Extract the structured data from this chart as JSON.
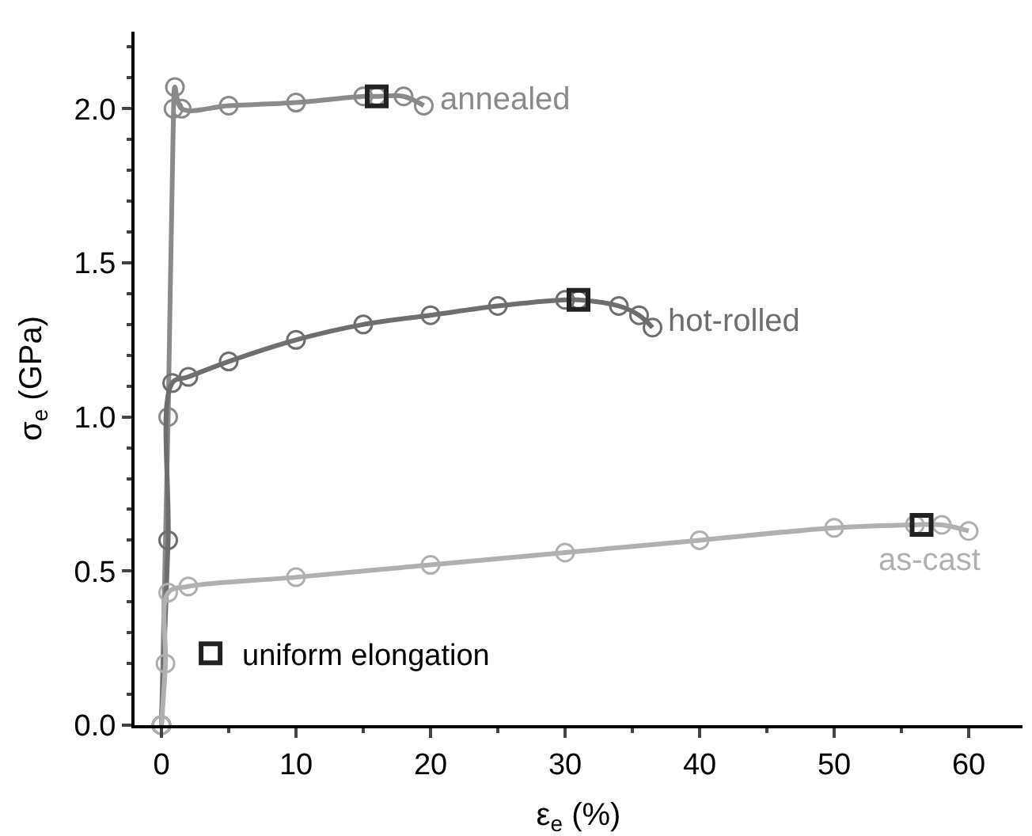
{
  "chart_data": {
    "type": "line",
    "xlabel": "ε$_{e}$ (%)",
    "ylabel": "σ$_{e}$ (GPa)",
    "xlim": [
      -2,
      64
    ],
    "ylim": [
      0,
      2.25
    ],
    "xticks": [
      0,
      10,
      20,
      30,
      40,
      50,
      60
    ],
    "yticks": [
      {
        "value": 0,
        "label": "0.0"
      },
      {
        "value": 0.5,
        "label": "0.5"
      },
      {
        "value": 1.0,
        "label": "1.0"
      },
      {
        "value": 1.5,
        "label": "1.5"
      },
      {
        "value": 2.0,
        "label": "2.0"
      }
    ],
    "marker": "circle",
    "line_style": "solid",
    "legend": "bottom left",
    "series": [
      {
        "name": "annealed",
        "color": "#8a8a8a",
        "x": [
          0,
          0.5,
          0.9,
          1.0,
          1.5,
          5,
          10,
          15,
          16,
          18,
          19.5
        ],
        "values": [
          0,
          1.0,
          2.0,
          2.07,
          2.0,
          2.01,
          2.02,
          2.04,
          2.04,
          2.04,
          2.01
        ]
      },
      {
        "name": "hot-rolled",
        "color": "#6e6e6e",
        "x": [
          0,
          0.5,
          0.8,
          2,
          5,
          10,
          15,
          20,
          25,
          30,
          31,
          34,
          35.5,
          36.5
        ],
        "values": [
          0,
          0.6,
          1.11,
          1.13,
          1.18,
          1.25,
          1.3,
          1.33,
          1.36,
          1.38,
          1.38,
          1.36,
          1.33,
          1.29
        ]
      },
      {
        "name": "as-cast",
        "color": "#b0b0b0",
        "x": [
          0,
          0.3,
          0.5,
          2,
          10,
          20,
          30,
          40,
          50,
          56,
          58,
          60
        ],
        "values": [
          0,
          0.2,
          0.43,
          0.45,
          0.48,
          0.52,
          0.56,
          0.6,
          0.64,
          0.65,
          0.65,
          0.63
        ]
      },
      {
        "name": "uniform elongation",
        "type": "scatter",
        "marker": "square",
        "color": "#222222",
        "x": [
          16,
          31,
          56.5
        ],
        "values": [
          2.04,
          1.38,
          0.65
        ]
      }
    ]
  }
}
